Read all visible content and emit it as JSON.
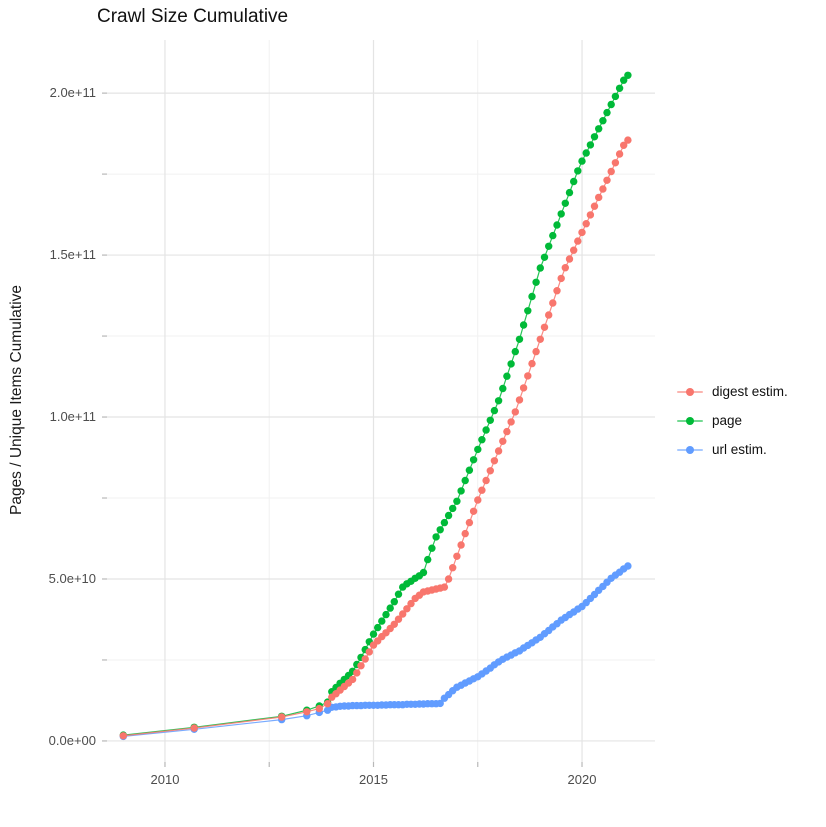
{
  "header": {
    "title": "Crawl Size Cumulative"
  },
  "y_axis": {
    "title": "Pages / Unique Items Cumulative",
    "tick_labels": [
      "0.0e+00",
      "5.0e+10",
      "1.0e+11",
      "1.5e+11",
      "2.0e+11"
    ],
    "tick_values_e9": [
      0,
      50,
      100,
      150,
      200
    ],
    "minor_values_e9": [
      25,
      75,
      125,
      175
    ]
  },
  "x_axis": {
    "tick_labels": [
      "2010",
      "2015",
      "2020"
    ],
    "tick_values": [
      2010,
      2015,
      2020
    ],
    "minor_values": [
      2012.5,
      2017.5
    ]
  },
  "style": {
    "grid_major_color": "#e4e4e4",
    "grid_minor_color": "#f1f1f1",
    "tick_mark_color": "#b8b8b8"
  },
  "chart_data": {
    "type": "scatter",
    "title": "Crawl Size Cumulative",
    "xlabel": "",
    "ylabel": "Pages / Unique Items Cumulative",
    "x_range": [
      2008.61,
      2021.75
    ],
    "y_range_e9": [
      -6.5,
      216.4
    ],
    "y_unit": "items, value_e9 = billions (1e9)",
    "grid": true,
    "legend_position": "right",
    "series": [
      {
        "id": "digest",
        "name": "digest estim.",
        "color": "#F8766D",
        "points": [
          [
            2009.0,
            1.6
          ],
          [
            2010.7,
            4.0
          ],
          [
            2012.8,
            7.4
          ],
          [
            2013.4,
            9.0
          ],
          [
            2013.7,
            10.0
          ],
          [
            2013.9,
            11.5
          ],
          [
            2014.0,
            13.5
          ],
          [
            2014.1,
            14.6
          ],
          [
            2014.2,
            15.7
          ],
          [
            2014.3,
            16.8
          ],
          [
            2014.4,
            17.9
          ],
          [
            2014.5,
            19.0
          ],
          [
            2014.6,
            21.0
          ],
          [
            2014.7,
            23.2
          ],
          [
            2014.8,
            25.3
          ],
          [
            2014.9,
            27.5
          ],
          [
            2015.0,
            29.6
          ],
          [
            2015.1,
            30.9
          ],
          [
            2015.2,
            32.2
          ],
          [
            2015.3,
            33.4
          ],
          [
            2015.4,
            34.7
          ],
          [
            2015.5,
            36.0
          ],
          [
            2015.6,
            37.6
          ],
          [
            2015.7,
            39.2
          ],
          [
            2015.8,
            40.8
          ],
          [
            2015.9,
            42.4
          ],
          [
            2016.0,
            44.0
          ],
          [
            2016.1,
            45.0
          ],
          [
            2016.2,
            46.0
          ],
          [
            2016.3,
            46.3
          ],
          [
            2016.4,
            46.6
          ],
          [
            2016.5,
            46.9
          ],
          [
            2016.6,
            47.2
          ],
          [
            2016.7,
            47.5
          ],
          [
            2016.8,
            50.0
          ],
          [
            2016.9,
            53.5
          ],
          [
            2017.0,
            57.0
          ],
          [
            2017.1,
            60.5
          ],
          [
            2017.2,
            64.0
          ],
          [
            2017.3,
            67.4
          ],
          [
            2017.4,
            70.9
          ],
          [
            2017.5,
            74.4
          ],
          [
            2017.6,
            77.4
          ],
          [
            2017.7,
            80.4
          ],
          [
            2017.8,
            83.4
          ],
          [
            2017.9,
            86.5
          ],
          [
            2018.0,
            89.5
          ],
          [
            2018.1,
            92.5
          ],
          [
            2018.2,
            95.5
          ],
          [
            2018.3,
            98.5
          ],
          [
            2018.4,
            101.6
          ],
          [
            2018.5,
            105.3
          ],
          [
            2018.6,
            109.0
          ],
          [
            2018.7,
            112.7
          ],
          [
            2018.8,
            116.5
          ],
          [
            2018.9,
            120.2
          ],
          [
            2019.0,
            124.0
          ],
          [
            2019.1,
            127.7
          ],
          [
            2019.2,
            131.5
          ],
          [
            2019.3,
            135.2
          ],
          [
            2019.4,
            139.0
          ],
          [
            2019.5,
            142.8
          ],
          [
            2019.6,
            146.1
          ],
          [
            2019.7,
            148.8
          ],
          [
            2019.8,
            151.5
          ],
          [
            2019.9,
            154.3
          ],
          [
            2020.0,
            157.0
          ],
          [
            2020.1,
            159.7
          ],
          [
            2020.2,
            162.4
          ],
          [
            2020.3,
            165.1
          ],
          [
            2020.4,
            167.8
          ],
          [
            2020.5,
            170.4
          ],
          [
            2020.6,
            173.1
          ],
          [
            2020.7,
            175.8
          ],
          [
            2020.8,
            178.5
          ],
          [
            2020.9,
            181.2
          ],
          [
            2021.0,
            183.9
          ],
          [
            2021.1,
            185.5
          ]
        ]
      },
      {
        "id": "page",
        "name": "page",
        "color": "#00BA38",
        "points": [
          [
            2009.0,
            1.8
          ],
          [
            2010.7,
            4.2
          ],
          [
            2012.8,
            7.6
          ],
          [
            2013.4,
            9.5
          ],
          [
            2013.7,
            10.8
          ],
          [
            2013.9,
            12.0
          ],
          [
            2014.0,
            15.2
          ],
          [
            2014.1,
            16.5
          ],
          [
            2014.2,
            17.8
          ],
          [
            2014.3,
            19.0
          ],
          [
            2014.4,
            20.2
          ],
          [
            2014.5,
            21.5
          ],
          [
            2014.6,
            23.6
          ],
          [
            2014.7,
            25.8
          ],
          [
            2014.8,
            28.2
          ],
          [
            2014.9,
            30.6
          ],
          [
            2015.0,
            33.0
          ],
          [
            2015.1,
            35.0
          ],
          [
            2015.2,
            37.0
          ],
          [
            2015.3,
            39.0
          ],
          [
            2015.4,
            41.0
          ],
          [
            2015.5,
            43.0
          ],
          [
            2015.6,
            45.3
          ],
          [
            2015.7,
            47.5
          ],
          [
            2015.8,
            48.5
          ],
          [
            2015.9,
            49.3
          ],
          [
            2016.0,
            50.2
          ],
          [
            2016.1,
            51.0
          ],
          [
            2016.2,
            52.0
          ],
          [
            2016.3,
            56.0
          ],
          [
            2016.4,
            59.5
          ],
          [
            2016.5,
            63.0
          ],
          [
            2016.6,
            65.2
          ],
          [
            2016.7,
            67.4
          ],
          [
            2016.8,
            69.6
          ],
          [
            2016.9,
            71.8
          ],
          [
            2017.0,
            74.0
          ],
          [
            2017.1,
            77.2
          ],
          [
            2017.2,
            80.4
          ],
          [
            2017.3,
            83.6
          ],
          [
            2017.4,
            86.8
          ],
          [
            2017.5,
            90.0
          ],
          [
            2017.6,
            93.0
          ],
          [
            2017.7,
            96.0
          ],
          [
            2017.8,
            99.0
          ],
          [
            2017.9,
            102.0
          ],
          [
            2018.0,
            105.0
          ],
          [
            2018.1,
            108.8
          ],
          [
            2018.2,
            112.6
          ],
          [
            2018.3,
            116.4
          ],
          [
            2018.4,
            120.2
          ],
          [
            2018.5,
            124.0
          ],
          [
            2018.6,
            128.4
          ],
          [
            2018.7,
            132.8
          ],
          [
            2018.8,
            137.2
          ],
          [
            2018.9,
            141.6
          ],
          [
            2019.0,
            146.0
          ],
          [
            2019.1,
            149.3
          ],
          [
            2019.2,
            152.7
          ],
          [
            2019.3,
            156.0
          ],
          [
            2019.4,
            159.3
          ],
          [
            2019.5,
            162.7
          ],
          [
            2019.6,
            166.0
          ],
          [
            2019.7,
            169.3
          ],
          [
            2019.8,
            172.7
          ],
          [
            2019.9,
            176.0
          ],
          [
            2020.0,
            179.0
          ],
          [
            2020.1,
            181.5
          ],
          [
            2020.2,
            184.0
          ],
          [
            2020.3,
            186.5
          ],
          [
            2020.4,
            189.0
          ],
          [
            2020.5,
            191.5
          ],
          [
            2020.6,
            194.0
          ],
          [
            2020.7,
            196.5
          ],
          [
            2020.8,
            199.0
          ],
          [
            2020.9,
            201.5
          ],
          [
            2021.0,
            204.0
          ],
          [
            2021.1,
            205.5
          ]
        ]
      },
      {
        "id": "url",
        "name": "url estim.",
        "color": "#619CFF",
        "points": [
          [
            2009.0,
            1.4
          ],
          [
            2010.7,
            3.6
          ],
          [
            2012.8,
            6.6
          ],
          [
            2013.4,
            7.8
          ],
          [
            2013.7,
            8.8
          ],
          [
            2013.9,
            9.5
          ],
          [
            2014.0,
            10.4
          ],
          [
            2014.1,
            10.5
          ],
          [
            2014.2,
            10.7
          ],
          [
            2014.3,
            10.8
          ],
          [
            2014.4,
            10.8
          ],
          [
            2014.5,
            10.9
          ],
          [
            2014.6,
            10.9
          ],
          [
            2014.7,
            10.9
          ],
          [
            2014.8,
            11.0
          ],
          [
            2014.9,
            11.0
          ],
          [
            2015.0,
            11.0
          ],
          [
            2015.1,
            11.0
          ],
          [
            2015.2,
            11.1
          ],
          [
            2015.3,
            11.1
          ],
          [
            2015.4,
            11.2
          ],
          [
            2015.5,
            11.2
          ],
          [
            2015.6,
            11.2
          ],
          [
            2015.7,
            11.2
          ],
          [
            2015.8,
            11.3
          ],
          [
            2015.9,
            11.3
          ],
          [
            2016.0,
            11.3
          ],
          [
            2016.1,
            11.4
          ],
          [
            2016.2,
            11.4
          ],
          [
            2016.3,
            11.5
          ],
          [
            2016.4,
            11.5
          ],
          [
            2016.5,
            11.5
          ],
          [
            2016.6,
            11.6
          ],
          [
            2016.7,
            13.2
          ],
          [
            2016.8,
            14.3
          ],
          [
            2016.9,
            15.5
          ],
          [
            2017.0,
            16.6
          ],
          [
            2017.1,
            17.2
          ],
          [
            2017.2,
            17.9
          ],
          [
            2017.3,
            18.5
          ],
          [
            2017.4,
            19.2
          ],
          [
            2017.5,
            19.8
          ],
          [
            2017.6,
            20.7
          ],
          [
            2017.7,
            21.6
          ],
          [
            2017.8,
            22.5
          ],
          [
            2017.9,
            23.5
          ],
          [
            2018.0,
            24.4
          ],
          [
            2018.1,
            25.2
          ],
          [
            2018.2,
            25.9
          ],
          [
            2018.3,
            26.5
          ],
          [
            2018.4,
            27.2
          ],
          [
            2018.5,
            27.8
          ],
          [
            2018.6,
            28.7
          ],
          [
            2018.7,
            29.5
          ],
          [
            2018.8,
            30.3
          ],
          [
            2018.9,
            31.2
          ],
          [
            2019.0,
            32.0
          ],
          [
            2019.1,
            33.1
          ],
          [
            2019.2,
            34.1
          ],
          [
            2019.3,
            35.2
          ],
          [
            2019.4,
            36.2
          ],
          [
            2019.5,
            37.3
          ],
          [
            2019.6,
            38.1
          ],
          [
            2019.7,
            39.0
          ],
          [
            2019.8,
            39.8
          ],
          [
            2019.9,
            40.7
          ],
          [
            2020.0,
            41.5
          ],
          [
            2020.1,
            42.7
          ],
          [
            2020.2,
            44.0
          ],
          [
            2020.3,
            45.2
          ],
          [
            2020.4,
            46.5
          ],
          [
            2020.5,
            47.7
          ],
          [
            2020.6,
            49.0
          ],
          [
            2020.7,
            50.2
          ],
          [
            2020.8,
            51.2
          ],
          [
            2020.9,
            52.1
          ],
          [
            2021.0,
            53.1
          ],
          [
            2021.1,
            54.0
          ]
        ]
      }
    ]
  }
}
